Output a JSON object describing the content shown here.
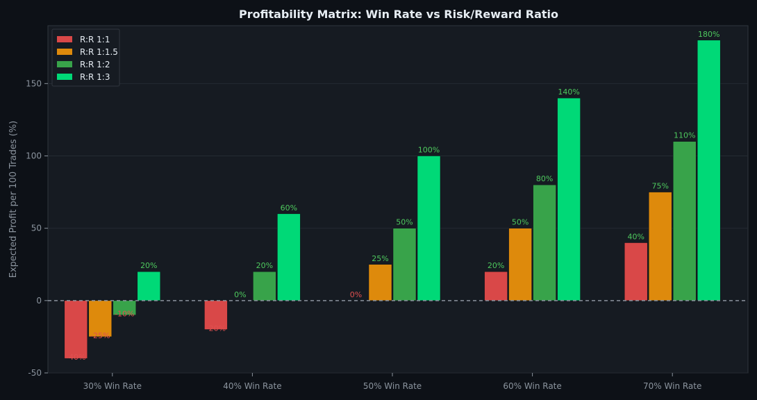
{
  "chart_data": {
    "type": "bar",
    "title": "Profitability Matrix: Win Rate vs Risk/Reward Ratio",
    "xlabel": "",
    "ylabel": "Expected Profit per 100 Trades (%)",
    "ylim": [
      -50,
      190
    ],
    "yticks": [
      -50,
      0,
      50,
      100,
      150
    ],
    "categories": [
      "30% Win Rate",
      "40% Win Rate",
      "50% Win Rate",
      "60% Win Rate",
      "70% Win Rate"
    ],
    "series": [
      {
        "name": "R:R 1:1",
        "color": "#d94848",
        "values": [
          -40,
          -20,
          0,
          20,
          40
        ],
        "labels": [
          "-40%",
          "-20%",
          "0%",
          "20%",
          "40%"
        ]
      },
      {
        "name": "R:R 1:1.5",
        "color": "#de8a0c",
        "values": [
          -25,
          0,
          25,
          50,
          75
        ],
        "labels": [
          "-25%",
          "0%",
          "25%",
          "50%",
          "75%"
        ]
      },
      {
        "name": "R:R 1:2",
        "color": "#38a34a",
        "values": [
          -10,
          20,
          50,
          80,
          110
        ],
        "labels": [
          "-10%",
          "20%",
          "50%",
          "80%",
          "110%"
        ]
      },
      {
        "name": "R:R 1:3",
        "color": "#00d977",
        "values": [
          20,
          60,
          100,
          140,
          180
        ],
        "labels": [
          "20%",
          "60%",
          "100%",
          "140%",
          "180%"
        ]
      }
    ],
    "legend": "top-left",
    "grid": true,
    "zero_line": "dashed",
    "positive_label_color": "#4ec95e",
    "negative_label_color": "#e05050"
  },
  "colors": {
    "background": "#0d1117",
    "plot_background": "#161b22",
    "axis": "#30363d",
    "text": "#8b949e",
    "title": "#e6edf3"
  }
}
